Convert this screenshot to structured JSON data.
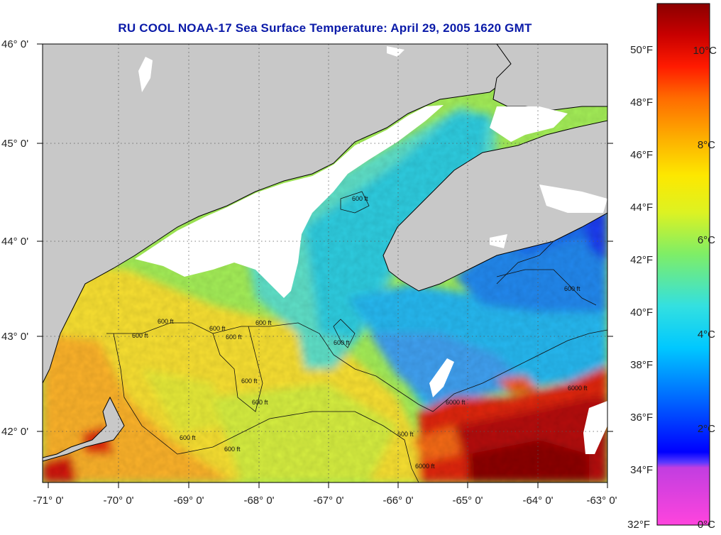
{
  "title": "RU COOL  NOAA-17  Sea Surface Temperature:  April 29, 2005 1620 GMT",
  "map": {
    "lat_labels": [
      "46° 0'",
      "45° 0'",
      "44° 0'",
      "43° 0'",
      "42° 0'"
    ],
    "lon_labels": [
      "-71° 0'",
      "-70° 0'",
      "-69° 0'",
      "-68° 0'",
      "-67° 0'",
      "-66° 0'",
      "-65° 0'",
      "-64° 0'",
      "-63° 0'"
    ],
    "contour_labels": [
      "600 ft",
      "600 ft",
      "600 ft",
      "600 ft",
      "600 ft",
      "600 ft",
      "600 ft",
      "600 ft",
      "600 ft",
      "600 ft",
      "600 ft",
      "600 ft",
      "600 ft",
      "6000 ft",
      "6000 ft",
      "6000 ft"
    ],
    "colors": {
      "land": "#c8c8c8",
      "cloud": "#ffffff",
      "grid": "#555555"
    }
  },
  "colorbar": {
    "fahrenheit_labels": [
      "50°F",
      "48°F",
      "46°F",
      "44°F",
      "42°F",
      "40°F",
      "38°F",
      "36°F",
      "34°F",
      "32°F"
    ],
    "celsius_labels": [
      "10°C",
      "8°C",
      "6°C",
      "4°C",
      "2°C",
      "0°C"
    ]
  }
}
